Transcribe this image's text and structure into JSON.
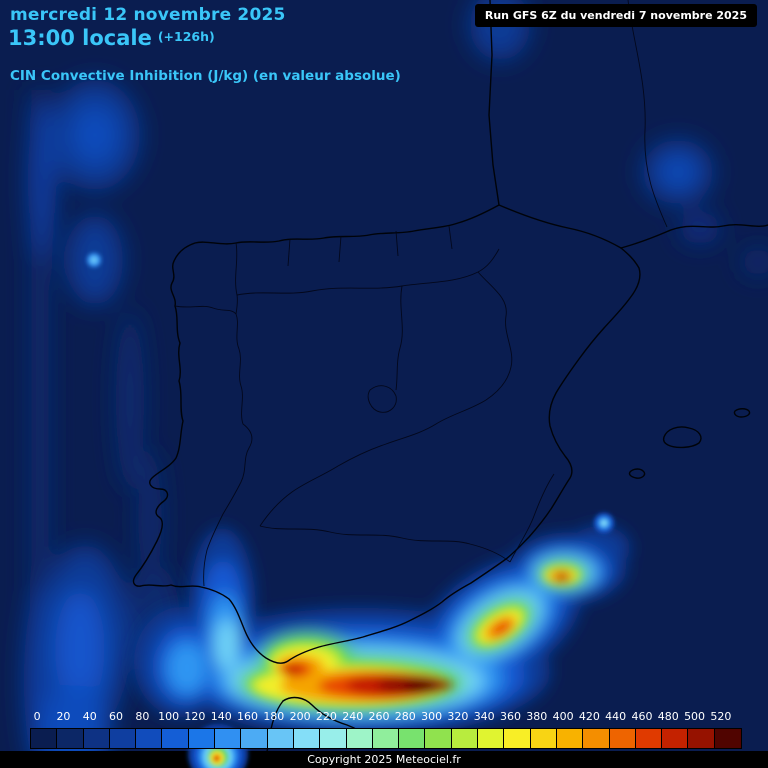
{
  "theme": {
    "accent": "#3ac6f8",
    "map_bg": "#0a1d50",
    "text_light": "#ffffff"
  },
  "header": {
    "date_line": "mercredi 12 novembre 2025",
    "time_line": "13:00 locale",
    "time_offset": "(+126h)",
    "subtitle": "CIN Convective Inhibition (J/kg) (en valeur absolue)",
    "run_info": "Run GFS 6Z du vendredi 7 novembre 2025"
  },
  "legend": {
    "labels": [
      "0",
      "20",
      "40",
      "60",
      "80",
      "100",
      "120",
      "140",
      "160",
      "180",
      "200",
      "220",
      "240",
      "260",
      "280",
      "300",
      "320",
      "340",
      "360",
      "380",
      "400",
      "420",
      "440",
      "460",
      "480",
      "500",
      "520"
    ],
    "colors": [
      "#0a1d50",
      "#0c2766",
      "#0e3284",
      "#0f3ea0",
      "#114cbc",
      "#145ed6",
      "#1b76e8",
      "#3090f2",
      "#4cabf4",
      "#68c5f6",
      "#84def8",
      "#98eeea",
      "#9ef4c8",
      "#90ee9c",
      "#78e26e",
      "#90e24e",
      "#b8ec3e",
      "#e0f430",
      "#f8ee26",
      "#f8d414",
      "#f8b200",
      "#f48e00",
      "#ee6400",
      "#e03a00",
      "#c42200",
      "#961200",
      "#500400"
    ]
  },
  "footer": {
    "copyright": "Copyright 2025 Meteociel.fr"
  }
}
